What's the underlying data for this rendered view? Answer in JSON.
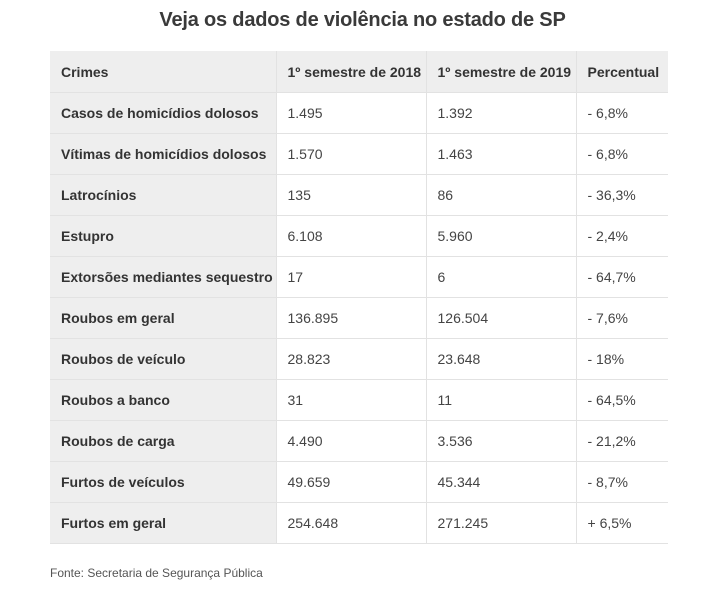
{
  "title": "Veja os dados de violência no estado de SP",
  "table": {
    "headers": [
      "Crimes",
      "1º semestre de 2018",
      "1º semestre de 2019",
      "Percentual"
    ],
    "rows": [
      [
        "Casos de homicídios dolosos",
        "1.495",
        "1.392",
        "- 6,8%"
      ],
      [
        "Vítimas de homicídios dolosos",
        "1.570",
        "1.463",
        "- 6,8%"
      ],
      [
        "Latrocínios",
        "135",
        "86",
        "- 36,3%"
      ],
      [
        "Estupro",
        "6.108",
        "5.960",
        "- 2,4%"
      ],
      [
        "Extorsões mediantes sequestro",
        "17",
        "6",
        "- 64,7%"
      ],
      [
        "Roubos em geral",
        "136.895",
        "126.504",
        "- 7,6%"
      ],
      [
        "Roubos de veículo",
        "28.823",
        "23.648",
        "- 18%"
      ],
      [
        "Roubos a banco",
        "31",
        "11",
        "- 64,5%"
      ],
      [
        "Roubos de carga",
        "4.490",
        "3.536",
        "- 21,2%"
      ],
      [
        "Furtos de veículos",
        "49.659",
        "45.344",
        "- 8,7%"
      ],
      [
        "Furtos em geral",
        "254.648",
        "271.245",
        "+ 6,5%"
      ]
    ]
  },
  "source": "Fonte: Secretaria de Segurança Pública"
}
